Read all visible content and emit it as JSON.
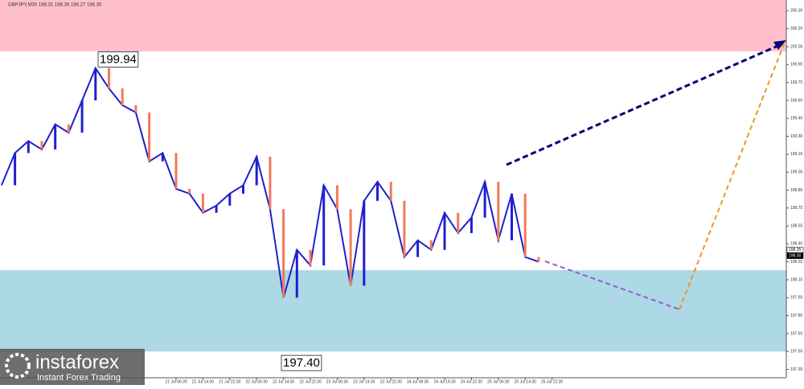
{
  "chart_data": {
    "type": "line",
    "title": "GBPJPY,M30 198.31 198.36 198.27 198.30",
    "categories": [
      null,
      null,
      null,
      null,
      null,
      null,
      null,
      null,
      null,
      null,
      null,
      null,
      null,
      "21 Jul 06:30",
      null,
      "21 Jul 14:30",
      null,
      "21 Jul 22:30",
      null,
      "22 Jul 06:30",
      null,
      "22 Jul 14:30",
      null,
      "22 Jul 22:30",
      null,
      "23 Jul 06:30",
      null,
      "23 Jul 14:30",
      null,
      "23 Jul 22:30",
      null,
      "24 Jul 06:30",
      null,
      "24 Jul 14:30",
      null,
      "24 Jul 22:30",
      null,
      "25 Jul 06:30",
      null,
      "25 Jul 14:30",
      null,
      "25 Jul 22:30"
    ],
    "series": [
      {
        "color": "#1f1fd0",
        "values": [
          198.89,
          199.16,
          199.26,
          199.19,
          199.4,
          199.33,
          199.6,
          199.87,
          199.7,
          199.56,
          199.5,
          199.09,
          199.16,
          198.86,
          198.82,
          198.66,
          198.72,
          198.82,
          198.89,
          199.13,
          198.69,
          197.95,
          198.35,
          198.22,
          198.89,
          198.69,
          198.05,
          198.76,
          198.92,
          198.76,
          198.29,
          198.43,
          198.35,
          198.66,
          198.49,
          198.62,
          198.92,
          198.43,
          198.82,
          198.29,
          198.25,
          null
        ]
      }
    ],
    "ylim": [
      197.28,
      200.44
    ],
    "yticks": [
      {
        "value": 200.35,
        "label": "200.35"
      },
      {
        "value": 200.2,
        "label": "200.20"
      },
      {
        "value": 200.05,
        "label": "200.05"
      },
      {
        "value": 199.9,
        "label": "199.90"
      },
      {
        "value": 199.75,
        "label": "199.75"
      },
      {
        "value": 199.6,
        "label": "199.60"
      },
      {
        "value": 199.45,
        "label": "199.45"
      },
      {
        "value": 199.3,
        "label": "199.30"
      },
      {
        "value": 199.15,
        "label": "199.15"
      },
      {
        "value": 199,
        "label": "199.00"
      },
      {
        "value": 198.85,
        "label": "198.85"
      },
      {
        "value": 198.7,
        "label": "198.70"
      },
      {
        "value": 198.55,
        "label": "198.55"
      },
      {
        "value": 198.4,
        "label": "198.40"
      },
      {
        "value": 198.25,
        "label": "198.25"
      },
      {
        "value": 198.1,
        "label": "198.10"
      },
      {
        "value": 197.95,
        "label": "197.95"
      },
      {
        "value": 197.8,
        "label": "197.80"
      },
      {
        "value": 197.65,
        "label": "197.65"
      },
      {
        "value": 197.5,
        "label": "197.50"
      },
      {
        "value": 197.35,
        "label": "197.35"
      }
    ],
    "zones": [
      {
        "from": 200.01,
        "to": 200.44,
        "color": "#ffc0cb"
      },
      {
        "from": 197.5,
        "to": 198.18,
        "color": "#add8e6"
      }
    ],
    "annotations": [
      {
        "text": "199.94",
        "value": 199.94
      },
      {
        "text": "197.40",
        "value": 197.4
      }
    ],
    "price_labels": [
      {
        "text": "198.35",
        "value": 198.35
      },
      {
        "text": "198.30",
        "value": 198.3
      }
    ],
    "logo": {
      "name": "instaforex",
      "tagline": "Instant Forex Trading"
    }
  }
}
